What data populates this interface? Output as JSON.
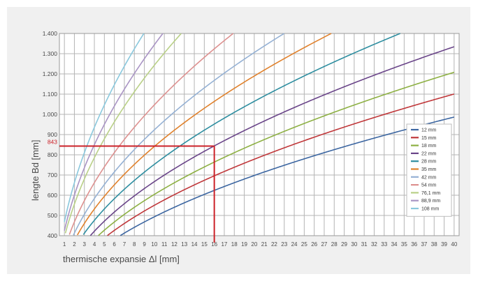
{
  "chart_data": {
    "type": "line",
    "title": "",
    "xlabel": "thermische expansie Δl [mm]",
    "ylabel": "lengte Bd [mm]",
    "xlim": [
      1,
      40
    ],
    "ylim": [
      400,
      1400
    ],
    "x_ticks": [
      1,
      2,
      3,
      4,
      5,
      6,
      7,
      8,
      9,
      10,
      11,
      12,
      13,
      14,
      15,
      16,
      17,
      18,
      19,
      20,
      21,
      22,
      23,
      24,
      25,
      26,
      27,
      28,
      29,
      30,
      31,
      32,
      33,
      34,
      35,
      36,
      37,
      38,
      39,
      40
    ],
    "y_ticks": [
      {
        "value": 400,
        "label": "400"
      },
      {
        "value": 500,
        "label": "500"
      },
      {
        "value": 600,
        "label": "600"
      },
      {
        "value": 700,
        "label": "700"
      },
      {
        "value": 800,
        "label": "800"
      },
      {
        "value": 900,
        "label": "900"
      },
      {
        "value": 1000,
        "label": "1.000"
      },
      {
        "value": 1100,
        "label": "1.100"
      },
      {
        "value": 1200,
        "label": "1.200"
      },
      {
        "value": 1300,
        "label": "1.300"
      },
      {
        "value": 1400,
        "label": "1.400"
      }
    ],
    "grid": true,
    "legend_position": "right",
    "series": [
      {
        "name": "12 mm",
        "color": "#3c66a1",
        "k": 156
      },
      {
        "name": "15 mm",
        "color": "#c0373a",
        "k": 174
      },
      {
        "name": "18 mm",
        "color": "#8db043",
        "k": 191
      },
      {
        "name": "22 mm",
        "color": "#6a4589",
        "k": 211
      },
      {
        "name": "28 mm",
        "color": "#2e8ea0",
        "k": 238
      },
      {
        "name": "35 mm",
        "color": "#e0812c",
        "k": 266
      },
      {
        "name": "42 mm",
        "color": "#95b1d4",
        "k": 292
      },
      {
        "name": "54 mm",
        "color": "#dd9190",
        "k": 331
      },
      {
        "name": "76,1 mm",
        "color": "#b9d087",
        "k": 393
      },
      {
        "name": "88,9 mm",
        "color": "#a994c4",
        "k": 425
      },
      {
        "name": "108 mm",
        "color": "#8ac8dd",
        "k": 468
      }
    ],
    "annotation": {
      "x": 16,
      "y": 843,
      "label": "843",
      "color": "#cc2229"
    }
  }
}
